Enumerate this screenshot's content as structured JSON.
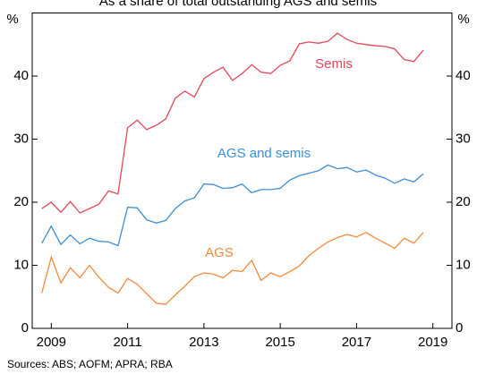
{
  "chart_data": {
    "type": "line",
    "title": "As a share of total outstanding AGS and semis",
    "y_unit": "%",
    "source": "Sources:   ABS; AOFM; APRA; RBA",
    "x": [
      2008.75,
      2009,
      2009.25,
      2009.5,
      2009.75,
      2010,
      2010.25,
      2010.5,
      2010.75,
      2011,
      2011.25,
      2011.5,
      2011.75,
      2012,
      2012.25,
      2012.5,
      2012.75,
      2013,
      2013.25,
      2013.5,
      2013.75,
      2014,
      2014.25,
      2014.5,
      2014.75,
      2015,
      2015.25,
      2015.5,
      2015.75,
      2016,
      2016.25,
      2016.5,
      2016.75,
      2017,
      2017.25,
      2017.5,
      2017.75,
      2018,
      2018.25,
      2018.5,
      2018.75
    ],
    "series": [
      {
        "name": "Semis",
        "color": "#e3475a",
        "values": [
          19.0,
          20.0,
          18.4,
          20.1,
          18.3,
          19.0,
          19.7,
          21.8,
          21.3,
          31.8,
          33.0,
          31.5,
          32.2,
          33.2,
          36.5,
          37.6,
          36.7,
          39.6,
          40.6,
          41.4,
          39.3,
          40.4,
          41.8,
          40.6,
          40.4,
          41.7,
          42.4,
          45.1,
          45.4,
          45.2,
          45.5,
          46.8,
          45.8,
          45.2,
          45.0,
          44.8,
          44.7,
          44.3,
          42.6,
          42.3,
          44.1
        ]
      },
      {
        "name": "AGS and semis",
        "color": "#3b8fd6",
        "values": [
          13.5,
          16.2,
          13.3,
          14.8,
          13.4,
          14.3,
          13.8,
          13.7,
          13.1,
          19.2,
          19.1,
          17.2,
          16.7,
          17.1,
          19.0,
          20.2,
          20.7,
          22.9,
          22.8,
          22.2,
          22.3,
          22.9,
          21.5,
          22.0,
          22.0,
          22.2,
          23.5,
          24.2,
          24.6,
          25.0,
          25.9,
          25.3,
          25.5,
          24.8,
          25.1,
          24.3,
          23.8,
          23.0,
          23.7,
          23.2,
          24.5
        ]
      },
      {
        "name": "AGS",
        "color": "#f28a3c",
        "values": [
          5.6,
          11.3,
          7.2,
          9.6,
          8.0,
          10.0,
          8.1,
          6.5,
          5.6,
          7.9,
          7.0,
          5.5,
          4.0,
          3.8,
          5.3,
          6.7,
          8.2,
          8.8,
          8.6,
          8.0,
          9.2,
          9.0,
          10.8,
          7.6,
          8.8,
          8.2,
          9.0,
          9.9,
          11.5,
          12.7,
          13.7,
          14.4,
          14.9,
          14.5,
          15.2,
          14.3,
          13.5,
          12.7,
          14.3,
          13.5,
          15.2
        ]
      }
    ],
    "xlim": [
      2008.5,
      2019.5
    ],
    "xticks": [
      2009,
      2011,
      2013,
      2015,
      2017,
      2019
    ],
    "ylim": [
      0,
      50
    ],
    "yticks": [
      0,
      10,
      20,
      30,
      40
    ],
    "y2lim": [
      0,
      50
    ],
    "y2ticks": [
      0,
      10,
      20,
      30,
      40
    ]
  }
}
